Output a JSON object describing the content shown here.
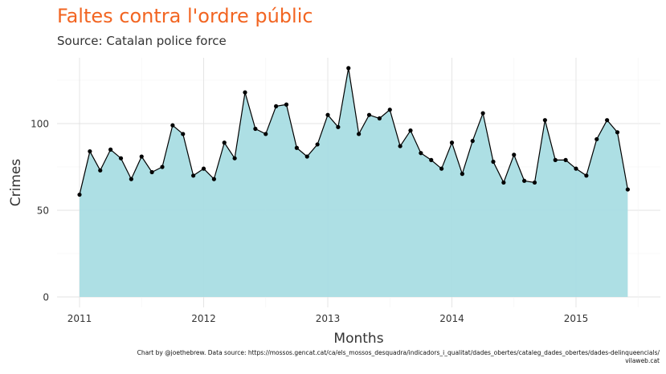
{
  "chart_data": {
    "type": "area",
    "title": "Faltes contra l'ordre públic",
    "subtitle": "Source: Catalan police force",
    "xlabel": "Months",
    "ylabel": "Crimes",
    "x_ticks": [
      "2011",
      "2012",
      "2013",
      "2014",
      "2015"
    ],
    "y_ticks": [
      0,
      50,
      100
    ],
    "ylim": [
      0,
      130
    ],
    "grid": true,
    "fill_color": "#a9dde3",
    "line_color": "#000000",
    "start": "2011-01",
    "x": [
      "2011-01",
      "2011-02",
      "2011-03",
      "2011-04",
      "2011-05",
      "2011-06",
      "2011-07",
      "2011-08",
      "2011-09",
      "2011-10",
      "2011-11",
      "2011-12",
      "2012-01",
      "2012-02",
      "2012-03",
      "2012-04",
      "2012-05",
      "2012-06",
      "2012-07",
      "2012-08",
      "2012-09",
      "2012-10",
      "2012-11",
      "2012-12",
      "2013-01",
      "2013-02",
      "2013-03",
      "2013-04",
      "2013-05",
      "2013-06",
      "2013-07",
      "2013-08",
      "2013-09",
      "2013-10",
      "2013-11",
      "2013-12",
      "2014-01",
      "2014-02",
      "2014-03",
      "2014-04",
      "2014-05",
      "2014-06",
      "2014-07",
      "2014-08",
      "2014-09",
      "2014-10",
      "2014-11",
      "2014-12",
      "2015-01",
      "2015-02",
      "2015-03",
      "2015-04",
      "2015-05",
      "2015-06"
    ],
    "values": [
      59,
      84,
      73,
      85,
      80,
      68,
      81,
      72,
      75,
      99,
      94,
      70,
      74,
      68,
      89,
      80,
      118,
      97,
      94,
      110,
      111,
      86,
      81,
      88,
      105,
      98,
      132,
      94,
      105,
      103,
      108,
      87,
      96,
      83,
      79,
      74,
      89,
      71,
      90,
      106,
      78,
      66,
      82,
      67,
      66,
      102,
      79,
      79,
      74,
      70,
      91,
      102,
      95,
      62
    ]
  },
  "caption": {
    "line1": "Chart by @joethebrew. Data source: https://mossos.gencat.cat/ca/els_mossos_desquadra/indicadors_i_qualitat/dades_obertes/cataleg_dades_obertes/dades-delinqueencials/",
    "line2": "vilaweb.cat"
  }
}
